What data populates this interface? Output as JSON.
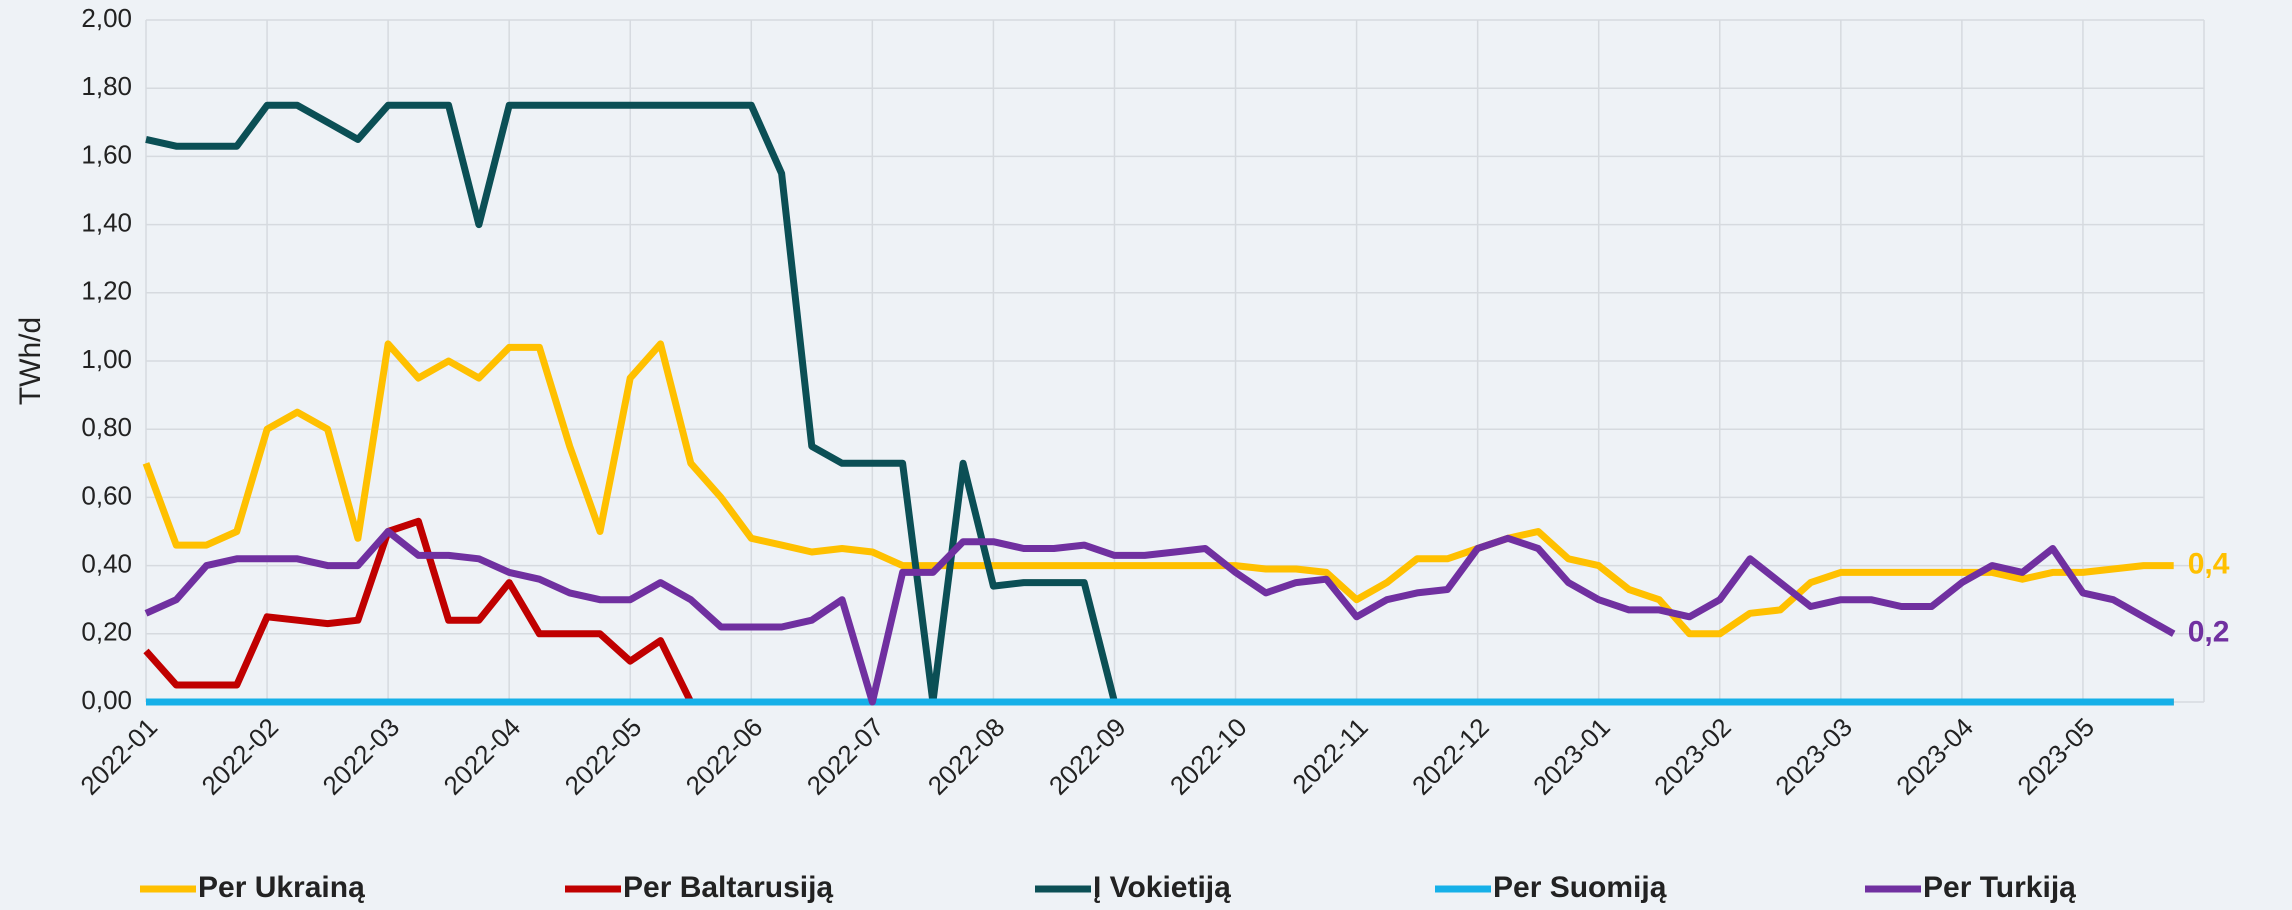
{
  "chart_data": {
    "type": "line",
    "y_label": "TWh/d",
    "categories": [
      "2022-01",
      null,
      null,
      null,
      "2022-02",
      null,
      null,
      null,
      "2022-03",
      null,
      null,
      null,
      "2022-04",
      null,
      null,
      null,
      "2022-05",
      null,
      null,
      null,
      "2022-06",
      null,
      null,
      null,
      "2022-07",
      null,
      null,
      null,
      "2022-08",
      null,
      null,
      null,
      "2022-09",
      null,
      null,
      null,
      "2022-10",
      null,
      null,
      null,
      "2022-11",
      null,
      null,
      null,
      "2022-12",
      null,
      null,
      null,
      "2023-01",
      null,
      null,
      null,
      "2023-02",
      null,
      null,
      null,
      "2023-03",
      null,
      null,
      null,
      "2023-04",
      null,
      null,
      null,
      "2023-05",
      null,
      null,
      null
    ],
    "ylim": [
      0,
      2
    ],
    "yticks": [
      {
        "value": 0,
        "label": "0,00"
      },
      {
        "value": 0.2,
        "label": "0,20"
      },
      {
        "value": 0.4,
        "label": "0,40"
      },
      {
        "value": 0.6,
        "label": "0,60"
      },
      {
        "value": 0.8,
        "label": "0,80"
      },
      {
        "value": 1,
        "label": "1,00"
      },
      {
        "value": 1.2,
        "label": "1,20"
      },
      {
        "value": 1.4,
        "label": "1,40"
      },
      {
        "value": 1.6,
        "label": "1,60"
      },
      {
        "value": 1.8,
        "label": "1,80"
      },
      {
        "value": 2,
        "label": "2,00"
      }
    ],
    "grid": true,
    "legend": "bottom",
    "series": [
      {
        "name": "Per Ukrainą",
        "color": "#ffc000",
        "values": [
          0.7,
          0.46,
          0.46,
          0.5,
          0.8,
          0.85,
          0.8,
          0.48,
          1.05,
          0.95,
          1.0,
          0.95,
          1.04,
          1.04,
          0.75,
          0.5,
          0.95,
          1.05,
          0.7,
          0.6,
          0.48,
          0.46,
          0.44,
          0.45,
          0.44,
          0.4,
          0.4,
          0.4,
          0.4,
          0.4,
          0.4,
          0.4,
          0.4,
          0.4,
          0.4,
          0.4,
          0.4,
          0.39,
          0.39,
          0.38,
          0.3,
          0.35,
          0.42,
          0.42,
          0.45,
          0.48,
          0.5,
          0.42,
          0.4,
          0.33,
          0.3,
          0.2,
          0.2,
          0.26,
          0.27,
          0.35,
          0.38,
          0.38,
          0.38,
          0.38,
          0.38,
          0.38,
          0.36,
          0.38,
          0.38,
          0.39,
          0.4,
          0.4
        ],
        "end_label": "0,4"
      },
      {
        "name": "Per Baltarusiją",
        "color": "#c00000",
        "values": [
          0.15,
          0.05,
          0.05,
          0.05,
          0.25,
          0.24,
          0.23,
          0.24,
          0.5,
          0.53,
          0.24,
          0.24,
          0.35,
          0.2,
          0.2,
          0.2,
          0.12,
          0.18,
          0,
          null,
          null,
          null,
          null,
          null,
          null,
          null,
          null,
          null,
          null,
          null,
          null,
          null,
          null,
          null,
          null,
          null,
          null,
          null,
          null,
          null,
          null,
          null,
          null,
          null,
          null,
          null,
          null,
          null,
          null,
          null,
          null,
          null,
          null,
          null,
          null,
          null,
          null,
          null,
          null,
          null,
          null,
          null,
          null,
          null,
          null,
          null,
          null,
          null
        ]
      },
      {
        "name": "Į Vokietiją",
        "color": "#0b4f55",
        "values": [
          1.65,
          1.63,
          1.63,
          1.63,
          1.75,
          1.75,
          1.7,
          1.65,
          1.75,
          1.75,
          1.75,
          1.4,
          1.75,
          1.75,
          1.75,
          1.75,
          1.75,
          1.75,
          1.75,
          1.75,
          1.75,
          1.55,
          0.75,
          0.7,
          0.7,
          0.7,
          0,
          0.7,
          0.34,
          0.35,
          0.35,
          0.35,
          0,
          0,
          0,
          0,
          0,
          0,
          0,
          0,
          0,
          0,
          0,
          0,
          0,
          0,
          0,
          0,
          0,
          0,
          0,
          0,
          0,
          0,
          0,
          0,
          0,
          0,
          0,
          0,
          0,
          0,
          0,
          0,
          0,
          0,
          0,
          0
        ]
      },
      {
        "name": "Per Suomiją",
        "color": "#15b0e8",
        "values": [
          0,
          0,
          0,
          0,
          0,
          0,
          0,
          0,
          0,
          0,
          0,
          0,
          0,
          0,
          0,
          0,
          0,
          0,
          0,
          0,
          0,
          0,
          0,
          0,
          0,
          0,
          0,
          0,
          0,
          0,
          0,
          0,
          0,
          0,
          0,
          0,
          0,
          0,
          0,
          0,
          0,
          0,
          0,
          0,
          0,
          0,
          0,
          0,
          0,
          0,
          0,
          0,
          0,
          0,
          0,
          0,
          0,
          0,
          0,
          0,
          0,
          0,
          0,
          0,
          0,
          0,
          0,
          0
        ]
      },
      {
        "name": "Per Turkiją",
        "color": "#7030a0",
        "values": [
          0.26,
          0.3,
          0.4,
          0.42,
          0.42,
          0.42,
          0.4,
          0.4,
          0.5,
          0.43,
          0.43,
          0.42,
          0.38,
          0.36,
          0.32,
          0.3,
          0.3,
          0.35,
          0.3,
          0.22,
          0.22,
          0.22,
          0.24,
          0.3,
          0,
          0.38,
          0.38,
          0.47,
          0.47,
          0.45,
          0.45,
          0.46,
          0.43,
          0.43,
          0.44,
          0.45,
          0.38,
          0.32,
          0.35,
          0.36,
          0.25,
          0.3,
          0.32,
          0.33,
          0.45,
          0.48,
          0.45,
          0.35,
          0.3,
          0.27,
          0.27,
          0.25,
          0.3,
          0.42,
          0.35,
          0.28,
          0.3,
          0.3,
          0.28,
          0.28,
          0.35,
          0.4,
          0.38,
          0.45,
          0.32,
          0.3,
          0.25,
          0.2
        ],
        "end_label": "0,2"
      }
    ]
  }
}
